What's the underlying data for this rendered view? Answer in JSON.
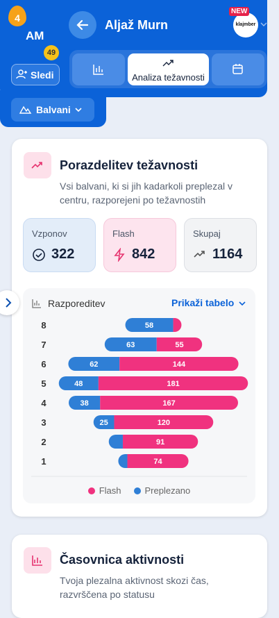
{
  "header": {
    "level": "4",
    "initials": "AM",
    "points": "49",
    "name": "Aljaž Murn",
    "follow": "Sledi",
    "new_badge": "NEW",
    "logo": "klajmber",
    "tabs": [
      "Analiza težavnosti"
    ],
    "filter": "Balvani"
  },
  "distribution": {
    "title": "Porazdelitev težavnosti",
    "subtitle": [
      "Vsi balvani, ki si jih kadarkoli preplezal v",
      "centru, razporejeni po težavnostih"
    ],
    "stats": [
      {
        "label": "Vzponov",
        "value": "322"
      },
      {
        "label": "Flash",
        "value": "842"
      },
      {
        "label": "Skupaj",
        "value": "1164"
      }
    ],
    "toggle": "Prikaži tabelo"
  },
  "chart_data": {
    "type": "bar",
    "title": "Razporeditev",
    "categories": [
      "8",
      "7",
      "6",
      "5",
      "4",
      "3",
      "2",
      "1"
    ],
    "series": [
      {
        "name": "Flash",
        "color": "#f0327f",
        "values": [
          10,
          55,
          144,
          181,
          167,
          120,
          91,
          74
        ]
      },
      {
        "name": "Preplezano",
        "color": "#2f7fd6",
        "values": [
          58,
          63,
          62,
          48,
          38,
          25,
          17,
          11
        ]
      }
    ]
  },
  "timeline": {
    "title": "Časovnica aktivnosti",
    "subtitle": [
      "Tvoja plezalna aktivnost skozi čas,",
      "razvrščena po statusu"
    ]
  }
}
